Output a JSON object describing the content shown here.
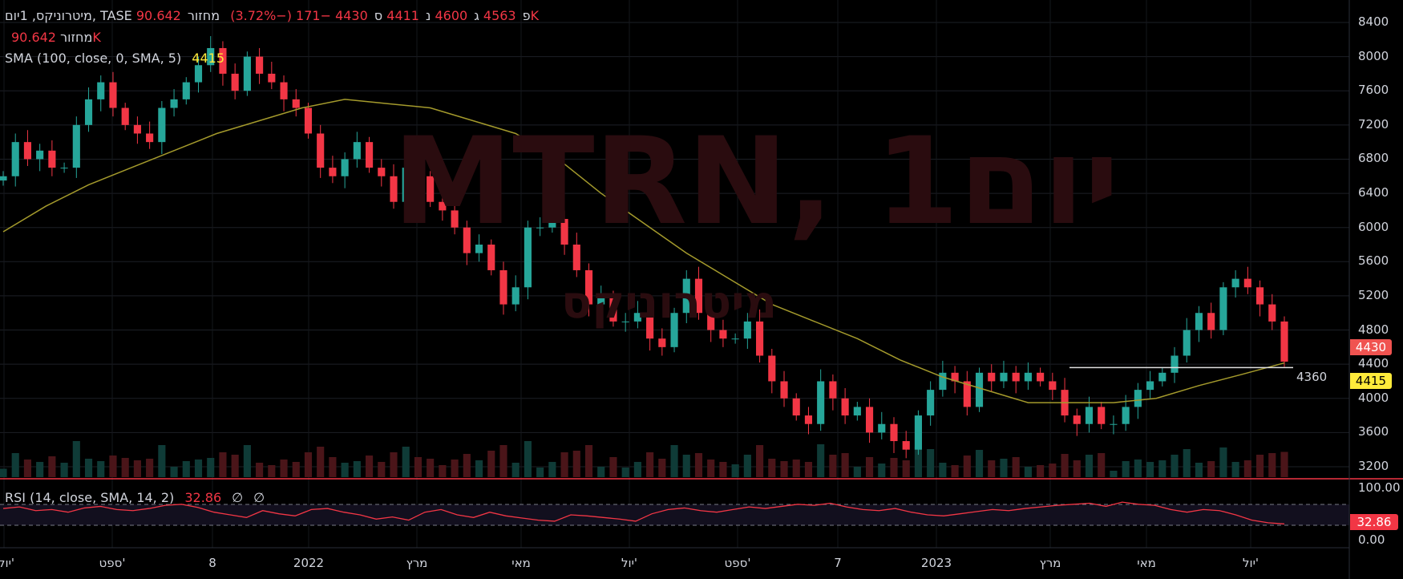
{
  "legend": {
    "symbol": "מיטרוניקס, 1יום, TASE",
    "open_label": "פ",
    "open": "4563",
    "high_label": "ג",
    "high": "4600",
    "low_label": "נ",
    "low": "4411",
    "close_label": "ס",
    "close": "4430",
    "change": "−171 (−3.72%)",
    "volume_label": "מחזור",
    "volume": "90.642K"
  },
  "volume_legend": {
    "label": "מחזור",
    "value": "90.642K"
  },
  "sma_legend": {
    "label": "SMA (100, close, 0, SMA, 5)",
    "value": "4415"
  },
  "rsi_legend": {
    "label": "RSI (14, close, SMA, 14, 2)",
    "value": "32.86",
    "na1": "∅",
    "na2": "∅"
  },
  "watermark": {
    "title": "MTRN, 1יום",
    "subtitle": "מיטרוניקס"
  },
  "price_axis": {
    "ticks": [
      "8400",
      "8000",
      "7600",
      "7200",
      "6800",
      "6400",
      "6000",
      "5600",
      "5200",
      "4800",
      "4400",
      "4000",
      "3600",
      "3200"
    ]
  },
  "rsi_axis": {
    "ticks": [
      "100.00",
      "0.00"
    ]
  },
  "tags": {
    "last_price": "4430",
    "sma": "4415",
    "rsi": "32.86",
    "hline": "4360"
  },
  "time_axis": [
    "יול'",
    "ספט'",
    "8",
    "2022",
    "מרץ",
    "מאי",
    "יול'",
    "ספט'",
    "7",
    "2023",
    "מרץ",
    "מאי",
    "יול'"
  ],
  "colors": {
    "up": "#26a69a",
    "down": "#f23645",
    "sma": "#a49a2c",
    "rsi": "#f23645",
    "bg": "#000000"
  },
  "chart_data": {
    "type": "candlestick",
    "ylim": [
      3200,
      8400
    ],
    "closes": [
      6600,
      7000,
      6800,
      6900,
      6700,
      6700,
      7200,
      7500,
      7700,
      7400,
      7200,
      7100,
      7000,
      7400,
      7500,
      7700,
      7900,
      8100,
      7800,
      7600,
      8000,
      7800,
      7700,
      7500,
      7400,
      7100,
      6700,
      6600,
      6800,
      7000,
      6700,
      6600,
      6300,
      6700,
      6600,
      6300,
      6200,
      6000,
      5700,
      5800,
      5500,
      5100,
      5300,
      6000,
      6000,
      6100,
      5800,
      5500,
      5100,
      5200,
      4900,
      4900,
      5000,
      4700,
      4600,
      5000,
      5400,
      5000,
      4800,
      4700,
      4700,
      4900,
      4500,
      4200,
      4000,
      3800,
      3700,
      4200,
      4000,
      3800,
      3900,
      3600,
      3700,
      3500,
      3400,
      3800,
      4100,
      4300,
      4200,
      3900,
      4300,
      4200,
      4300,
      4200,
      4300,
      4200,
      4100,
      3800,
      3700,
      3900,
      3700,
      3700,
      3900,
      4100,
      4200,
      4300,
      4500,
      4800,
      5000,
      4800,
      5300,
      5400,
      5300,
      5100,
      4900,
      4430
    ],
    "sma": [
      5950,
      6250,
      6500,
      6700,
      6900,
      7100,
      7250,
      7400,
      7500,
      7450,
      7400,
      7250,
      7100,
      6800,
      6400,
      6050,
      5700,
      5400,
      5100,
      4900,
      4700,
      4450,
      4250,
      4100,
      3950,
      3950,
      3950,
      4000,
      4150,
      4280,
      4415
    ],
    "rsi": [
      62,
      65,
      58,
      60,
      55,
      63,
      66,
      60,
      58,
      62,
      68,
      70,
      64,
      55,
      50,
      45,
      58,
      52,
      48,
      60,
      62,
      55,
      50,
      42,
      46,
      40,
      55,
      60,
      50,
      45,
      55,
      48,
      44,
      40,
      38,
      50,
      48,
      45,
      42,
      38,
      52,
      60,
      63,
      58,
      55,
      60,
      65,
      62,
      66,
      70,
      68,
      72,
      65,
      60,
      58,
      62,
      55,
      50,
      48,
      52,
      56,
      60,
      58,
      62,
      65,
      68,
      70,
      72,
      66,
      74,
      70,
      68,
      60,
      55,
      60,
      58,
      50,
      40,
      35,
      32.86
    ],
    "rsi_range": [
      0,
      100
    ],
    "rsi_bands": [
      70,
      30
    ],
    "hline": 4360
  }
}
